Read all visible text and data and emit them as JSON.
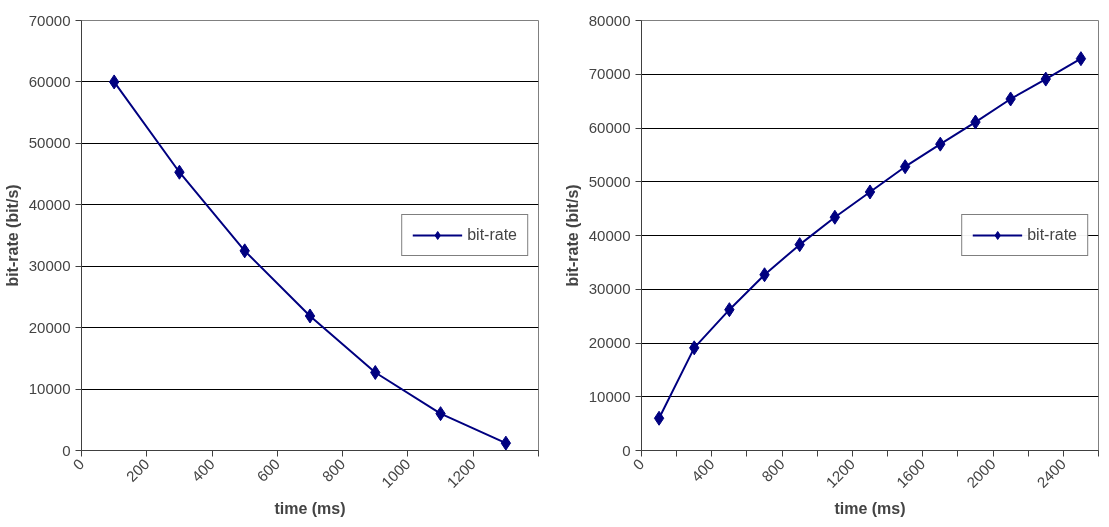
{
  "chart_data": [
    {
      "type": "line",
      "xlabel": "time (ms)",
      "ylabel": "bit-rate (bit/s)",
      "x": [
        100,
        300,
        500,
        700,
        900,
        1100,
        1300
      ],
      "series": [
        {
          "name": "bit-rate",
          "color": "#000080",
          "values": [
            60000,
            45300,
            32500,
            21900,
            12700,
            6000,
            1200
          ]
        }
      ],
      "xlim": [
        0,
        1400
      ],
      "xticks": [
        0,
        200,
        400,
        600,
        800,
        1000,
        1200,
        {
          "value": 1400,
          "label": null
        }
      ],
      "ylim": [
        0,
        70000
      ],
      "yticks": [
        0,
        10000,
        20000,
        30000,
        40000,
        50000,
        60000,
        70000
      ],
      "grid": "y",
      "legend": "right",
      "marker": "diamond",
      "line_style": "solid"
    },
    {
      "type": "line",
      "xlabel": "time (ms)",
      "ylabel": "bit-rate (bit/s)",
      "x": [
        100,
        300,
        500,
        700,
        900,
        1100,
        1300,
        1500,
        1700,
        1900,
        2100,
        2300,
        2500
      ],
      "series": [
        {
          "name": "bit-rate",
          "color": "#000080",
          "values": [
            6000,
            19100,
            26200,
            32700,
            38300,
            43400,
            48100,
            52800,
            57000,
            61100,
            65400,
            69100,
            72900
          ]
        }
      ],
      "xlim": [
        0,
        2600
      ],
      "xticks": [
        0,
        {
          "value": 200,
          "label": null
        },
        400,
        {
          "value": 600,
          "label": null
        },
        800,
        {
          "value": 1000,
          "label": null
        },
        1200,
        {
          "value": 1400,
          "label": null
        },
        1600,
        {
          "value": 1800,
          "label": null
        },
        2000,
        {
          "value": 2200,
          "label": null
        },
        2400,
        {
          "value": 2600,
          "label": null
        }
      ],
      "ylim": [
        0,
        80000
      ],
      "yticks": [
        0,
        10000,
        20000,
        30000,
        40000,
        50000,
        60000,
        70000,
        80000
      ],
      "grid": "y",
      "legend": "right",
      "marker": "diamond",
      "line_style": "solid"
    }
  ]
}
